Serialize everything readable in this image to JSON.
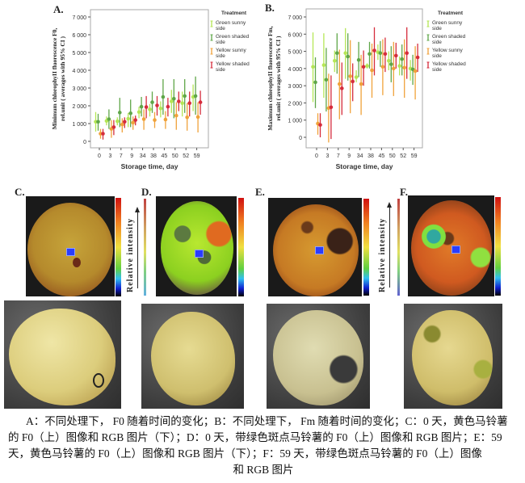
{
  "figure": {
    "panels": {
      "A": "A.",
      "B": "B.",
      "C": "C.",
      "D": "D.",
      "E": "E.",
      "F": "F."
    },
    "relative_intensity": "Relative intensity",
    "caption_lines": [
      "A：不同处理下， F0 随着时间的变化；B：不同处理下， Fm 随着时间的变化；C：0 天，黄色马铃薯的 F0（上）图像和 RGB 图片（下）；D：0 天，带绿色斑点马铃薯的 F0（上）图像和 RGB 图片；E：59 天，黄色马铃薯的 F0（上）图像和 RGB 图片（下）；F：59 天，带绿色斑点马铃薯的 F0（上）图像",
      "和 RGB 图片"
    ]
  },
  "chart_data": [
    {
      "type": "scatter",
      "subtype": "error-bar",
      "panel": "A.",
      "xlabel": "Storage time, day",
      "ylabel": "Minimum chlorophyII fluorescence F0, rel.unit ( averages with 95% CI )",
      "categories": [
        "0",
        "3",
        "7",
        "9",
        "34",
        "38",
        "45",
        "50",
        "52",
        "59"
      ],
      "ylim": [
        0,
        7000
      ],
      "yticks": [
        "0",
        "1 000",
        "2 000",
        "3 000",
        "4 000",
        "5 000",
        "6 000",
        "7 000"
      ],
      "legend_title": "Treatment",
      "legend_placement": "right",
      "grid": false,
      "series": [
        {
          "name": "Green sunny side",
          "color": "#b5e655",
          "mean": [
            1100,
            1150,
            1130,
            1270,
            1650,
            1800,
            1850,
            2250,
            2150,
            2500
          ],
          "ci_low": [
            550,
            900,
            900,
            800,
            1300,
            1400,
            1350,
            1600,
            1400,
            1700
          ],
          "ci_high": [
            1650,
            1400,
            1350,
            1600,
            1950,
            2100,
            2250,
            2900,
            2800,
            3200
          ]
        },
        {
          "name": "Green shaded side",
          "color": "#5fa648",
          "mean": [
            1100,
            1250,
            1620,
            1580,
            1950,
            2200,
            2500,
            2400,
            2550,
            2550
          ],
          "ci_low": [
            600,
            700,
            800,
            800,
            1400,
            1600,
            1500,
            1300,
            1600,
            1500
          ],
          "ci_high": [
            1550,
            1800,
            2450,
            2350,
            2500,
            2800,
            3500,
            3500,
            3500,
            3650
          ]
        },
        {
          "name": "Yellow sunny side",
          "color": "#f0a23a",
          "mean": [
            430,
            700,
            950,
            1050,
            1250,
            1200,
            1230,
            1450,
            1350,
            1370
          ],
          "ci_low": [
            150,
            200,
            500,
            650,
            650,
            750,
            700,
            650,
            600,
            500
          ],
          "ci_high": [
            700,
            1200,
            1300,
            1400,
            1800,
            1650,
            1700,
            2200,
            2150,
            2200
          ]
        },
        {
          "name": "Yellow shaded side",
          "color": "#d62c3c",
          "mean": [
            430,
            800,
            1100,
            1200,
            1930,
            2020,
            1950,
            2250,
            2150,
            2200
          ],
          "ci_low": [
            100,
            350,
            750,
            900,
            1300,
            1450,
            1400,
            1700,
            1400,
            1500
          ],
          "ci_high": [
            700,
            1200,
            1350,
            1450,
            2550,
            2550,
            2450,
            2800,
            2800,
            2850
          ]
        }
      ]
    },
    {
      "type": "scatter",
      "subtype": "error-bar",
      "panel": "B.",
      "xlabel": "Storage time, day",
      "ylabel": "Maximum chlorophyII fluorescence Fm, rel.unit ( averages with 95% CI )",
      "categories": [
        "0",
        "3",
        "7",
        "9",
        "34",
        "38",
        "45",
        "50",
        "52",
        "59"
      ],
      "ylim": [
        0,
        7000
      ],
      "yticks": [
        "0",
        "1 000",
        "2 000",
        "3 000",
        "4 000",
        "5 000",
        "6 000",
        "7 000"
      ],
      "legend_title": "Treatment",
      "legend_placement": "right",
      "grid": false,
      "series": [
        {
          "name": "Green sunny side",
          "color": "#b5e655",
          "mean": [
            4100,
            4200,
            4450,
            4900,
            3500,
            4150,
            4950,
            4450,
            4150,
            4000
          ],
          "ci_low": [
            2050,
            2300,
            3800,
            3400,
            3200,
            4000,
            4500,
            3900,
            3600,
            3300
          ],
          "ci_high": [
            6100,
            6050,
            5050,
            6350,
            3900,
            4300,
            5400,
            5000,
            4700,
            4500
          ]
        },
        {
          "name": "Green shaded side",
          "color": "#5fa648",
          "mean": [
            3200,
            3350,
            4900,
            4700,
            4500,
            4850,
            4900,
            4250,
            4550,
            3950
          ],
          "ci_low": [
            1700,
            1500,
            3700,
            3300,
            3500,
            4000,
            4100,
            3200,
            3600,
            3050
          ],
          "ci_high": [
            4650,
            5200,
            6050,
            6050,
            5550,
            5550,
            5600,
            5300,
            5400,
            4800
          ]
        },
        {
          "name": "Yellow sunny side",
          "color": "#f0a23a",
          "mean": [
            800,
            1700,
            3100,
            3550,
            3100,
            3900,
            4100,
            4000,
            4050,
            3850
          ],
          "ci_low": [
            150,
            -300,
            1050,
            1400,
            1300,
            2300,
            2450,
            2400,
            2300,
            2200
          ],
          "ci_high": [
            1400,
            3700,
            5100,
            5650,
            4800,
            5450,
            5700,
            5550,
            5700,
            5300
          ]
        },
        {
          "name": "Yellow shaded side",
          "color": "#d62c3c",
          "mean": [
            720,
            1750,
            2850,
            3250,
            4100,
            5050,
            4850,
            4750,
            4900,
            4650
          ],
          "ci_low": [
            0,
            -100,
            1300,
            2100,
            3000,
            3600,
            3800,
            4000,
            3400,
            3800
          ],
          "ci_high": [
            1400,
            3600,
            4350,
            4300,
            5050,
            6400,
            5800,
            5500,
            6400,
            5450
          ]
        }
      ]
    }
  ]
}
